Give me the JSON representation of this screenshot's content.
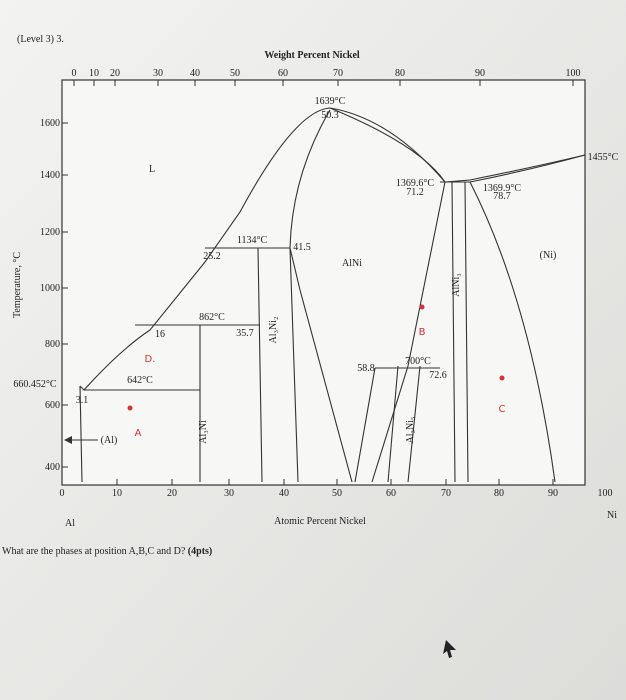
{
  "header": {
    "title": "(Level 3) 3."
  },
  "diagram": {
    "top_axis": {
      "title": "Weight Percent Nickel",
      "ticks": [
        "0",
        "10",
        "20",
        "30",
        "40",
        "50",
        "60",
        "70",
        "80",
        "90",
        "100"
      ]
    },
    "left_axis": {
      "title": "Temperature, °C",
      "ticks": [
        "1600",
        "1400",
        "1200",
        "1000",
        "800",
        "600",
        "400"
      ]
    },
    "bottom_axis": {
      "title": "Atomic Percent Nickel",
      "ticks": [
        "0",
        "10",
        "20",
        "30",
        "40",
        "50",
        "60",
        "70",
        "80",
        "90",
        "100"
      ],
      "left_end": "Al",
      "right_end": "Ni"
    },
    "annotations": [
      "1639°C",
      "50.3",
      "1455°C",
      "L",
      "1369.6°C",
      "71.2",
      "1369.9°C",
      "78.7",
      "1134°C",
      "41.5",
      "25.2",
      "AlNi",
      "(Ni)",
      "862°C",
      "16",
      "35.7",
      "Al₃Ni₂",
      "AlNi₃",
      "700°C",
      "72.6",
      "58.8",
      "642°C",
      "660.452°C",
      "3.1",
      "(Al)",
      "Al₃Ni",
      "Al₃Ni₅"
    ],
    "handwritten": [
      "D.",
      "B",
      "A",
      "C"
    ]
  },
  "question": {
    "text": "What are the phases at position A,B,C and D?",
    "points": "(4pts)"
  }
}
